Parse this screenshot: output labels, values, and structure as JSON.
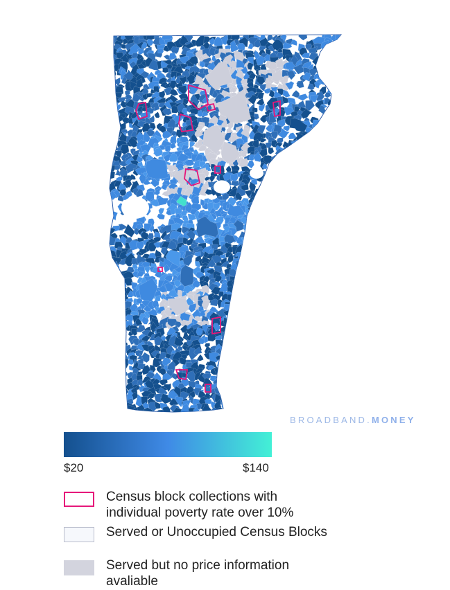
{
  "map": {
    "region": "Vermont",
    "colors": {
      "outline": "#2b5aa8",
      "land": "#ffffff",
      "dark_blue": "#14508e",
      "mid_blue": "#2f6fb8",
      "light_blue": "#3f8ae0",
      "bright_blue": "#4a98ea",
      "teal": "#43e0cc",
      "gray": "#cdcfdb",
      "poverty_outline": "#e6177a"
    }
  },
  "watermark": {
    "part1": "BROADBAND.",
    "part2": "MONEY"
  },
  "scale": {
    "min_label": "$20",
    "max_label": "$140",
    "gradient": [
      "#14508e",
      "#3f8ae6",
      "#43f0d6"
    ]
  },
  "legend": {
    "items": [
      {
        "label_line1": "Census block collections with",
        "label_line2": "individual poverty rate over 10%",
        "swatch": "poverty-outline"
      },
      {
        "label": "Served or Unoccupied Census Blocks",
        "swatch": "served"
      },
      {
        "label": "Served but no price information avaliable",
        "swatch": "no-price"
      }
    ]
  }
}
